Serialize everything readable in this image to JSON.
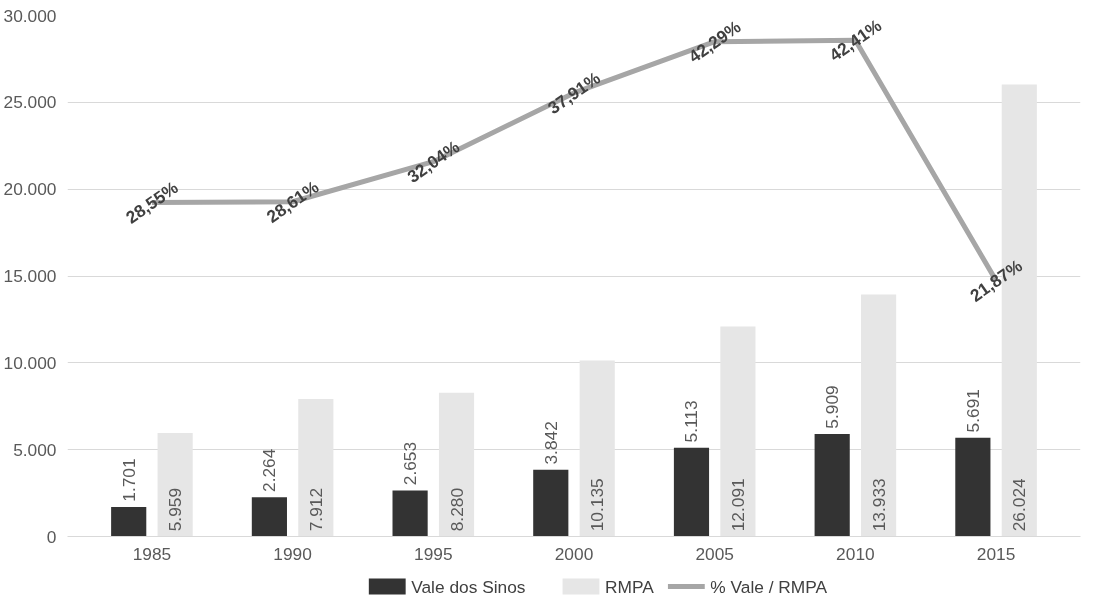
{
  "chart_data": {
    "type": "bar",
    "categories": [
      "1985",
      "1990",
      "1995",
      "2000",
      "2005",
      "2010",
      "2015"
    ],
    "series": [
      {
        "name": "Vale dos Sinos",
        "color": "#333333",
        "values": [
          1701,
          2264,
          2653,
          3842,
          5113,
          5909,
          5691
        ],
        "value_labels": [
          "1.701",
          "2.264",
          "2.653",
          "3.842",
          "5.113",
          "5.909",
          "5.691"
        ]
      },
      {
        "name": "RMPA",
        "color": "#e6e6e6",
        "values": [
          5959,
          7912,
          8280,
          10135,
          12091,
          13933,
          26024
        ],
        "value_labels": [
          "5.959",
          "7.912",
          "8.280",
          "10.135",
          "12.091",
          "13.933",
          "26.024"
        ]
      },
      {
        "name": "% Vale / RMPA",
        "type": "line",
        "axis": "y2",
        "color": "#a6a6a6",
        "values": [
          28.55,
          28.61,
          32.04,
          37.91,
          42.29,
          42.41,
          21.87
        ],
        "value_labels": [
          "28,55%",
          "28,61%",
          "32,04%",
          "37,91%",
          "42,29%",
          "42,41%",
          "21,87%"
        ]
      }
    ],
    "ylim": [
      0,
      30000
    ],
    "yticks": [
      {
        "value": 0,
        "label": "0"
      },
      {
        "value": 5000,
        "label": "5.000"
      },
      {
        "value": 10000,
        "label": "10.000"
      },
      {
        "value": 15000,
        "label": "15.000"
      },
      {
        "value": 20000,
        "label": "20.000"
      },
      {
        "value": 25000,
        "label": "25.000"
      },
      {
        "value": 30000,
        "label": "30.000"
      }
    ],
    "tick_labels": "xy",
    "grid": "y",
    "legend": "bottom"
  }
}
